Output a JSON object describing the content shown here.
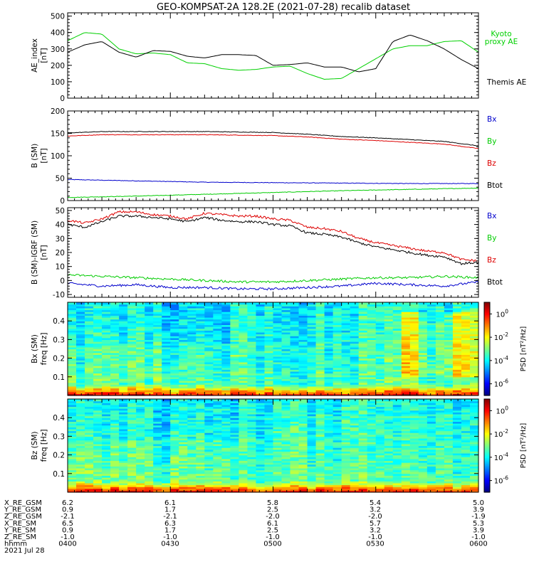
{
  "title": "GEO-KOMPSAT-2A 128.2E (2021-07-28) recalib dataset",
  "chart_data": [
    {
      "type": "line",
      "ylabel": "AE_index",
      "yunit": "[nT]",
      "ylim": [
        0,
        520
      ],
      "yticks": [
        "0",
        "100",
        "200",
        "300",
        "400",
        "500"
      ],
      "legend_placement": "right",
      "series": [
        {
          "name": "Kyoto proxy AE",
          "color": "#00d000",
          "x": [
            0,
            5,
            10,
            15,
            20,
            25,
            30,
            35,
            40,
            45,
            50,
            55,
            60,
            65,
            70,
            75,
            80,
            85,
            90,
            95,
            100,
            105,
            110,
            115,
            120
          ],
          "y": [
            350,
            400,
            390,
            300,
            270,
            275,
            265,
            215,
            210,
            180,
            170,
            175,
            190,
            195,
            150,
            115,
            120,
            180,
            240,
            300,
            320,
            320,
            345,
            350,
            280
          ]
        },
        {
          "name": "Themis AE",
          "color": "#000000",
          "x": [
            0,
            5,
            10,
            15,
            20,
            25,
            30,
            35,
            40,
            45,
            50,
            55,
            60,
            65,
            70,
            75,
            80,
            85,
            90,
            95,
            100,
            105,
            110,
            115,
            120
          ],
          "y": [
            280,
            325,
            345,
            280,
            250,
            290,
            285,
            255,
            245,
            265,
            265,
            260,
            200,
            205,
            215,
            190,
            190,
            160,
            180,
            345,
            385,
            350,
            300,
            235,
            180
          ]
        }
      ]
    },
    {
      "type": "line",
      "ylabel": "B (SM)",
      "yunit": "[nT]",
      "ylim": [
        0,
        200
      ],
      "yticks": [
        "0",
        "50",
        "100",
        "150",
        "200"
      ],
      "legend_placement": "right",
      "series": [
        {
          "name": "Bx",
          "color": "#0000cc",
          "x": [
            0,
            20,
            40,
            60,
            80,
            100,
            120
          ],
          "y": [
            47,
            44,
            41,
            40,
            39,
            38,
            38
          ]
        },
        {
          "name": "By",
          "color": "#00cc00",
          "x": [
            0,
            20,
            40,
            60,
            80,
            100,
            120
          ],
          "y": [
            7,
            10,
            14,
            18,
            22,
            25,
            28
          ]
        },
        {
          "name": "Bz",
          "color": "#dd0000",
          "x": [
            0,
            10,
            20,
            30,
            40,
            50,
            60,
            70,
            80,
            90,
            100,
            110,
            120
          ],
          "y": [
            144,
            147,
            147,
            147,
            147,
            146,
            145,
            142,
            137,
            134,
            130,
            126,
            116
          ]
        },
        {
          "name": "Btot",
          "color": "#000000",
          "x": [
            0,
            10,
            20,
            30,
            40,
            50,
            60,
            70,
            80,
            90,
            100,
            110,
            120
          ],
          "y": [
            151,
            154,
            154,
            154,
            154,
            153,
            152,
            148,
            143,
            140,
            136,
            132,
            122
          ]
        }
      ]
    },
    {
      "type": "line",
      "ylabel": "B (SM)-IGRF (SM)",
      "yunit": "[nT]",
      "ylim": [
        -12,
        52
      ],
      "yticks": [
        "-10",
        "0",
        "10",
        "20",
        "30",
        "40",
        "50"
      ],
      "legend_placement": "right",
      "series": [
        {
          "name": "Bx",
          "color": "#0000cc",
          "x": [
            0,
            10,
            20,
            30,
            40,
            50,
            60,
            70,
            80,
            90,
            100,
            110,
            120
          ],
          "y": [
            -2,
            -4,
            -3,
            -5,
            -5,
            -6,
            -6,
            -5,
            -4,
            -2,
            -3,
            -4,
            -1
          ]
        },
        {
          "name": "By",
          "color": "#00cc00",
          "x": [
            0,
            10,
            20,
            30,
            40,
            50,
            60,
            70,
            80,
            90,
            100,
            110,
            120
          ],
          "y": [
            4,
            3,
            2,
            1,
            0,
            -1,
            -1,
            0,
            1,
            2,
            2,
            3,
            2
          ]
        },
        {
          "name": "Bz",
          "color": "#dd0000",
          "x": [
            0,
            5,
            10,
            15,
            20,
            25,
            30,
            35,
            40,
            45,
            50,
            55,
            60,
            65,
            70,
            75,
            80,
            85,
            90,
            95,
            100,
            105,
            110,
            115,
            120
          ],
          "y": [
            43,
            41,
            44,
            49,
            49,
            47,
            46,
            44,
            48,
            47,
            46,
            46,
            44,
            43,
            38,
            37,
            35,
            30,
            27,
            25,
            23,
            21,
            20,
            15,
            14
          ]
        },
        {
          "name": "Btot",
          "color": "#000000",
          "x": [
            0,
            5,
            10,
            15,
            20,
            25,
            30,
            35,
            40,
            45,
            50,
            55,
            60,
            65,
            70,
            75,
            80,
            85,
            90,
            95,
            100,
            105,
            110,
            115,
            120
          ],
          "y": [
            40,
            38,
            42,
            46,
            46,
            45,
            44,
            42,
            45,
            43,
            42,
            42,
            40,
            39,
            34,
            33,
            31,
            27,
            24,
            22,
            20,
            18,
            17,
            12,
            13
          ]
        }
      ]
    },
    {
      "type": "heatmap",
      "ylabel": "Bx (SM)",
      "yunit": "freq [Hz]",
      "ylim": [
        0,
        0.5
      ],
      "yticks": [
        "0.1",
        "0.2",
        "0.3",
        "0.4"
      ],
      "colorbar_label": "PSD [nT²/Hz]",
      "colorbar_ticks": [
        "10^0",
        "10^-2",
        "10^-4",
        "10^-6"
      ],
      "colorbar_range_log10": [
        -7,
        1
      ],
      "columns": 48,
      "rows": 50
    },
    {
      "type": "heatmap",
      "ylabel": "Bz (SM)",
      "yunit": "freq [Hz]",
      "ylim": [
        0,
        0.5
      ],
      "yticks": [
        "0.1",
        "0.2",
        "0.3",
        "0.4"
      ],
      "colorbar_label": "PSD [nT²/Hz]",
      "colorbar_ticks": [
        "10^0",
        "10^-2",
        "10^-4",
        "10^-6"
      ],
      "colorbar_range_log10": [
        -7,
        1
      ],
      "columns": 48,
      "rows": 50
    }
  ],
  "orbit_table": {
    "labels": [
      "X_RE_GSM",
      "Y_RE_GSM",
      "Z_RE_GSM",
      "X_RE_SM",
      "Y_RE_SM",
      "Z_RE_SM",
      "hhmm"
    ],
    "columns": [
      [
        "6.2",
        "0.9",
        "-2.1",
        "6.5",
        "0.9",
        "-1.0",
        "0400"
      ],
      [
        "6.1",
        "1.7",
        "-2.1",
        "6.3",
        "1.7",
        "-1.0",
        "0430"
      ],
      [
        "5.8",
        "2.5",
        "-2.0",
        "6.1",
        "2.5",
        "-1.0",
        "0500"
      ],
      [
        "5.4",
        "3.2",
        "-2.0",
        "5.7",
        "3.2",
        "-1.0",
        "0530"
      ],
      [
        "5.0",
        "3.9",
        "-1.9",
        "5.3",
        "3.9",
        "-1.0",
        "0600"
      ]
    ],
    "date": "2021 Jul 28"
  }
}
